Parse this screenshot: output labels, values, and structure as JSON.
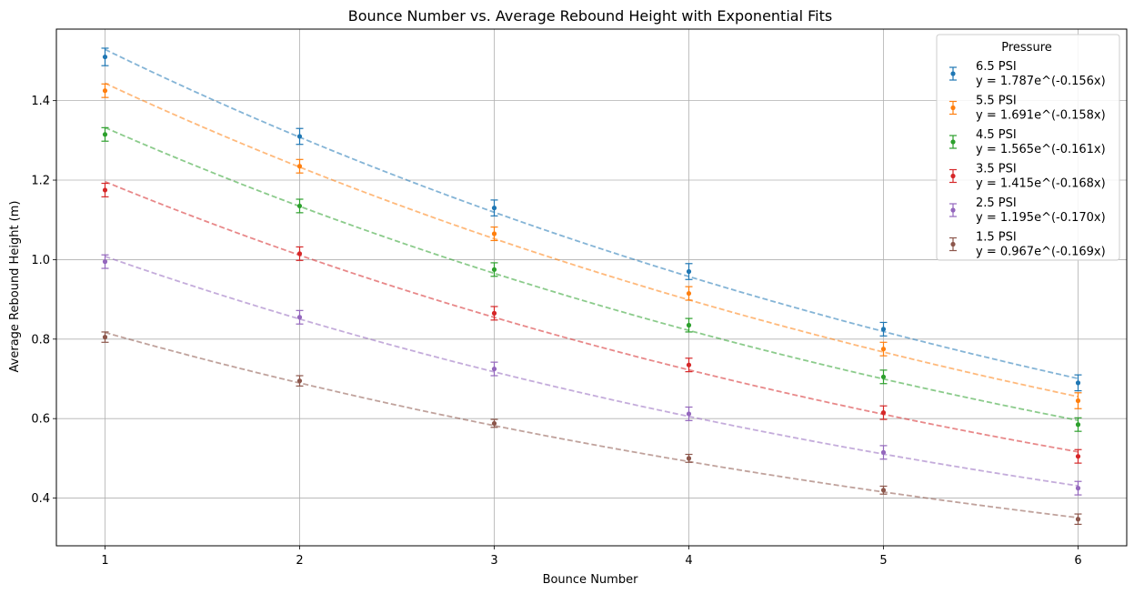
{
  "chart_data": {
    "type": "scatter",
    "title": "Bounce Number vs. Average Rebound Height with Exponential Fits",
    "xlabel": "Bounce Number",
    "ylabel": "Average Rebound Height (m)",
    "xlim": [
      0.75,
      6.25
    ],
    "ylim": [
      0.28,
      1.58
    ],
    "xticks": [
      1,
      2,
      3,
      4,
      5,
      6
    ],
    "yticks": [
      0.4,
      0.6,
      0.8,
      1.0,
      1.2,
      1.4
    ],
    "ytick_labels": [
      "0.4",
      "0.6",
      "0.8",
      "1.0",
      "1.2",
      "1.4"
    ],
    "grid": true,
    "legend": {
      "title": "Pressure",
      "position": "top-right"
    },
    "series": [
      {
        "name": "6.5 PSI",
        "fit_label": "y = 1.787e^(-0.156x)",
        "color": "#1f77b4",
        "fit": {
          "a": 1.787,
          "b": -0.156
        },
        "x": [
          1,
          2,
          3,
          4,
          5,
          6
        ],
        "y": [
          1.51,
          1.31,
          1.13,
          0.97,
          0.825,
          0.69
        ],
        "err": [
          0.022,
          0.02,
          0.02,
          0.02,
          0.017,
          0.02
        ]
      },
      {
        "name": "5.5 PSI",
        "fit_label": "y = 1.691e^(-0.158x)",
        "color": "#ff7f0e",
        "fit": {
          "a": 1.691,
          "b": -0.158
        },
        "x": [
          1,
          2,
          3,
          4,
          5,
          6
        ],
        "y": [
          1.425,
          1.235,
          1.065,
          0.915,
          0.775,
          0.645
        ],
        "err": [
          0.017,
          0.017,
          0.017,
          0.017,
          0.017,
          0.02
        ]
      },
      {
        "name": "4.5 PSI",
        "fit_label": "y = 1.565e^(-0.161x)",
        "color": "#2ca02c",
        "fit": {
          "a": 1.565,
          "b": -0.161
        },
        "x": [
          1,
          2,
          3,
          4,
          5,
          6
        ],
        "y": [
          1.315,
          1.135,
          0.975,
          0.835,
          0.705,
          0.585
        ],
        "err": [
          0.017,
          0.017,
          0.017,
          0.017,
          0.017,
          0.017
        ]
      },
      {
        "name": "3.5 PSI",
        "fit_label": "y = 1.415e^(-0.168x)",
        "color": "#d62728",
        "fit": {
          "a": 1.415,
          "b": -0.168
        },
        "x": [
          1,
          2,
          3,
          4,
          5,
          6
        ],
        "y": [
          1.175,
          1.015,
          0.865,
          0.735,
          0.615,
          0.505
        ],
        "err": [
          0.017,
          0.017,
          0.017,
          0.017,
          0.017,
          0.017
        ]
      },
      {
        "name": "2.5 PSI",
        "fit_label": "y = 1.195e^(-0.170x)",
        "color": "#9467bd",
        "fit": {
          "a": 1.195,
          "b": -0.17
        },
        "x": [
          1,
          2,
          3,
          4,
          5,
          6
        ],
        "y": [
          0.995,
          0.855,
          0.725,
          0.612,
          0.515,
          0.425
        ],
        "err": [
          0.017,
          0.017,
          0.017,
          0.017,
          0.017,
          0.017
        ]
      },
      {
        "name": "1.5 PSI",
        "fit_label": "y = 0.967e^(-0.169x)",
        "color": "#8c564b",
        "fit": {
          "a": 0.967,
          "b": -0.169
        },
        "x": [
          1,
          2,
          3,
          4,
          5,
          6
        ],
        "y": [
          0.805,
          0.695,
          0.588,
          0.5,
          0.42,
          0.347
        ],
        "err": [
          0.013,
          0.013,
          0.01,
          0.01,
          0.01,
          0.013
        ]
      }
    ]
  }
}
